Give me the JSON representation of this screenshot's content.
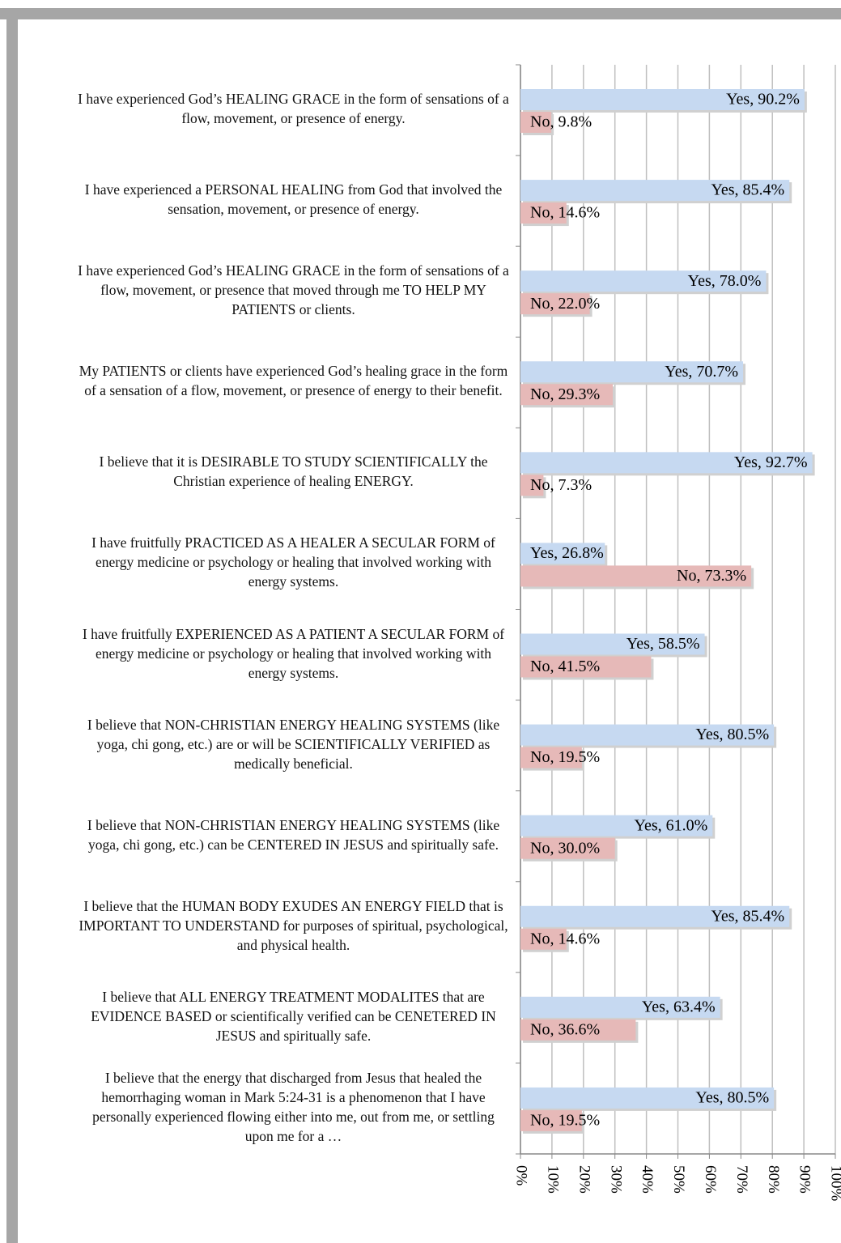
{
  "chart_data": {
    "type": "barh",
    "categories": [
      "I have experienced God’s HEALING GRACE in the form of sensations of a flow, movement, or presence of energy.",
      "I have experienced a PERSONAL HEALING from God that involved the sensation, movement, or presence of energy.",
      "I have experienced God’s HEALING GRACE in the form of sensations of a flow, movement, or presence that moved through me TO HELP MY PATIENTS or clients.",
      "My PATIENTS or clients have experienced God’s healing grace in the form of a sensation of a flow, movement, or presence of energy to their benefit.",
      "I believe that it is DESIRABLE TO STUDY SCIENTIFICALLY the Christian experience of healing ENERGY.",
      "I have fruitfully PRACTICED AS A HEALER A SECULAR FORM of energy medicine or psychology or healing that involved working with energy systems.",
      "I have fruitfully EXPERIENCED AS A PATIENT A SECULAR FORM of energy medicine or psychology or healing that involved working with energy systems.",
      "I believe that NON-CHRISTIAN ENERGY HEALING SYSTEMS (like yoga, chi gong, etc.) are or will be SCIENTIFICALLY VERIFIED as medically beneficial.",
      "I believe that NON-CHRISTIAN ENERGY HEALING SYSTEMS (like yoga, chi gong, etc.) can be CENTERED IN JESUS and spiritually safe.",
      "I believe that the HUMAN BODY EXUDES AN ENERGY FIELD that is IMPORTANT TO UNDERSTAND for purposes of spiritual, psychological, and physical health.",
      "I believe that ALL ENERGY TREATMENT MODALITES that are EVIDENCE BASED or scientifically verified can be CENETERED IN JESUS and spiritually safe.",
      "I believe that the energy that discharged from Jesus that healed the hemorrhaging woman in Mark 5:24-31 is a phenomenon that I have personally experienced flowing either into me, out from me, or settling upon me for a …"
    ],
    "series": [
      {
        "name": "Yes",
        "color": "#c6d9f1",
        "values": [
          90.2,
          85.4,
          78.0,
          70.7,
          92.7,
          26.8,
          58.5,
          80.5,
          61.0,
          85.4,
          63.4,
          80.5
        ],
        "value_labels": [
          "Yes, 90.2%",
          "Yes, 85.4%",
          "Yes, 78.0%",
          "Yes, 70.7%",
          "Yes, 92.7%",
          "Yes, 26.8%",
          "Yes, 58.5%",
          "Yes, 80.5%",
          "Yes, 61.0%",
          "Yes, 85.4%",
          "Yes, 63.4%",
          "Yes, 80.5%"
        ]
      },
      {
        "name": "No",
        "color": "#e6b9b8",
        "values": [
          9.8,
          14.6,
          22.0,
          29.3,
          7.3,
          73.3,
          41.5,
          19.5,
          30.0,
          14.6,
          36.6,
          19.5
        ],
        "value_labels": [
          "No, 9.8%",
          "No, 14.6%",
          "No, 22.0%",
          "No, 29.3%",
          "No, 7.3%",
          "No, 73.3%",
          "No, 41.5%",
          "No, 19.5%",
          "No, 30.0%",
          "No, 14.6%",
          "No, 36.6%",
          "No, 19.5%"
        ]
      }
    ],
    "xlim": [
      0,
      100
    ],
    "xticks": [
      {
        "value": 0,
        "label": "0%"
      },
      {
        "value": 10,
        "label": "10%"
      },
      {
        "value": 20,
        "label": "20%"
      },
      {
        "value": 30,
        "label": "30%"
      },
      {
        "value": 40,
        "label": "40%"
      },
      {
        "value": 50,
        "label": "50%"
      },
      {
        "value": 60,
        "label": "60%"
      },
      {
        "value": 70,
        "label": "70%"
      },
      {
        "value": 80,
        "label": "80%"
      },
      {
        "value": 90,
        "label": "90%"
      },
      {
        "value": 100,
        "label": "100%"
      }
    ],
    "grid": true
  }
}
